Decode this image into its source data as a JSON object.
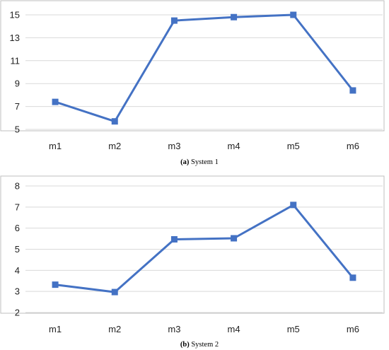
{
  "chart_data": [
    {
      "type": "line",
      "categories": [
        "m1",
        "m2",
        "m3",
        "m4",
        "m5",
        "m6"
      ],
      "series": [
        {
          "values": [
            7.4,
            5.7,
            14.5,
            14.8,
            15.0,
            8.4
          ],
          "color": "#4472c4",
          "marker": "square"
        }
      ],
      "caption_label": "(a)",
      "caption_text": "System 1",
      "ylim": [
        5,
        15
      ],
      "yticks": [
        5,
        7,
        9,
        11,
        13,
        15
      ],
      "grid": true,
      "legend": "none"
    },
    {
      "type": "line",
      "categories": [
        "m1",
        "m2",
        "m3",
        "m4",
        "m5",
        "m6"
      ],
      "series": [
        {
          "values": [
            3.32,
            2.97,
            5.47,
            5.52,
            7.1,
            3.65
          ],
          "color": "#4472c4",
          "marker": "square"
        }
      ],
      "caption_label": "(b)",
      "caption_text": "System 2",
      "ylim": [
        2,
        8
      ],
      "yticks": [
        2,
        3,
        4,
        5,
        6,
        7,
        8
      ],
      "grid": true,
      "legend": "none"
    }
  ]
}
